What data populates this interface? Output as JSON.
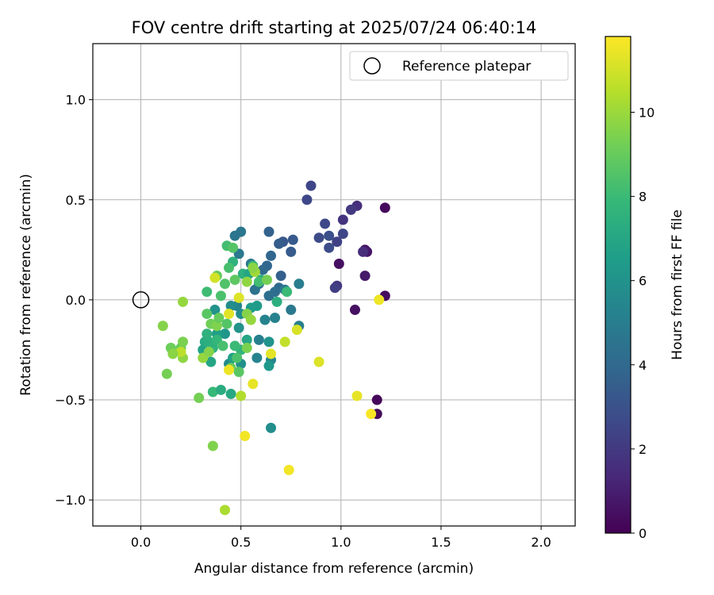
{
  "chart_data": {
    "type": "scatter",
    "title": "FOV centre drift starting at 2025/07/24 06:40:14",
    "xlabel": "Angular distance from reference (arcmin)",
    "ylabel": "Rotation from reference (arcmin)",
    "xlim": [
      -0.24,
      2.17
    ],
    "ylim": [
      -1.13,
      1.28
    ],
    "x_ticks": [
      0.0,
      0.5,
      1.0,
      1.5,
      2.0
    ],
    "x_tick_labels": [
      "0.0",
      "0.5",
      "1.0",
      "1.5",
      "2.0"
    ],
    "y_ticks": [
      -1.0,
      -0.5,
      0.0,
      0.5,
      1.0
    ],
    "y_tick_labels": [
      "−1.0",
      "−0.5",
      "0.0",
      "0.5",
      "1.0"
    ],
    "grid": true,
    "legend": {
      "placement": "top-right",
      "entries": [
        "Reference platepar"
      ]
    },
    "reference_point": {
      "x": 0.0,
      "y": 0.0,
      "label": "Reference platepar"
    },
    "colorbar": {
      "label": "Hours from first FF file",
      "min": 0,
      "max": 11.8,
      "ticks": [
        0,
        2,
        4,
        6,
        8,
        10
      ],
      "tick_labels": [
        "0",
        "2",
        "4",
        "6",
        "8",
        "10"
      ],
      "colormap": "viridis"
    },
    "points": [
      {
        "x": 1.22,
        "y": 0.46,
        "h": 0.3
      },
      {
        "x": 1.22,
        "y": 0.02,
        "h": 0.4
      },
      {
        "x": 1.18,
        "y": -0.5,
        "h": 0.2
      },
      {
        "x": 1.18,
        "y": -0.57,
        "h": 0.3
      },
      {
        "x": 1.12,
        "y": 0.25,
        "h": 0.6
      },
      {
        "x": 1.13,
        "y": 0.24,
        "h": 0.7
      },
      {
        "x": 1.12,
        "y": 0.12,
        "h": 0.8
      },
      {
        "x": 0.99,
        "y": 0.18,
        "h": 0.5
      },
      {
        "x": 1.07,
        "y": -0.05,
        "h": 0.5
      },
      {
        "x": 1.11,
        "y": 0.24,
        "h": 1.5
      },
      {
        "x": 1.08,
        "y": 0.47,
        "h": 1.6
      },
      {
        "x": 1.05,
        "y": 0.45,
        "h": 2.0
      },
      {
        "x": 1.01,
        "y": 0.4,
        "h": 1.8
      },
      {
        "x": 0.98,
        "y": 0.07,
        "h": 1.9
      },
      {
        "x": 0.97,
        "y": 0.06,
        "h": 2.2
      },
      {
        "x": 0.98,
        "y": 0.29,
        "h": 2.3
      },
      {
        "x": 1.01,
        "y": 0.33,
        "h": 2.5
      },
      {
        "x": 0.94,
        "y": 0.26,
        "h": 2.8
      },
      {
        "x": 0.92,
        "y": 0.38,
        "h": 2.6
      },
      {
        "x": 0.89,
        "y": 0.31,
        "h": 2.7
      },
      {
        "x": 0.85,
        "y": 0.57,
        "h": 2.5
      },
      {
        "x": 0.83,
        "y": 0.5,
        "h": 2.6
      },
      {
        "x": 0.94,
        "y": 0.32,
        "h": 2.9
      },
      {
        "x": 0.76,
        "y": 0.3,
        "h": 3.3
      },
      {
        "x": 0.75,
        "y": 0.24,
        "h": 3.4
      },
      {
        "x": 0.71,
        "y": 0.29,
        "h": 3.2
      },
      {
        "x": 0.69,
        "y": 0.28,
        "h": 3.5
      },
      {
        "x": 0.7,
        "y": 0.12,
        "h": 3.6
      },
      {
        "x": 0.64,
        "y": 0.34,
        "h": 3.7
      },
      {
        "x": 0.65,
        "y": 0.22,
        "h": 3.9
      },
      {
        "x": 0.63,
        "y": 0.17,
        "h": 3.9
      },
      {
        "x": 0.61,
        "y": 0.15,
        "h": 4.1
      },
      {
        "x": 0.69,
        "y": 0.06,
        "h": 4.0
      },
      {
        "x": 0.67,
        "y": 0.04,
        "h": 4.2
      },
      {
        "x": 0.64,
        "y": 0.02,
        "h": 4.3
      },
      {
        "x": 0.59,
        "y": 0.08,
        "h": 4.4
      },
      {
        "x": 0.57,
        "y": 0.05,
        "h": 4.5
      },
      {
        "x": 0.55,
        "y": 0.18,
        "h": 4.6
      },
      {
        "x": 0.5,
        "y": 0.34,
        "h": 4.7
      },
      {
        "x": 0.47,
        "y": 0.32,
        "h": 4.6
      },
      {
        "x": 0.49,
        "y": 0.23,
        "h": 4.8
      },
      {
        "x": 0.72,
        "y": 0.05,
        "h": 4.9
      },
      {
        "x": 0.75,
        "y": -0.05,
        "h": 4.8
      },
      {
        "x": 0.79,
        "y": 0.08,
        "h": 5.0
      },
      {
        "x": 0.79,
        "y": -0.13,
        "h": 5.1
      },
      {
        "x": 0.67,
        "y": -0.09,
        "h": 5.2
      },
      {
        "x": 0.62,
        "y": -0.1,
        "h": 5.3
      },
      {
        "x": 0.59,
        "y": -0.2,
        "h": 5.1
      },
      {
        "x": 0.58,
        "y": -0.29,
        "h": 5.3
      },
      {
        "x": 0.65,
        "y": -0.3,
        "h": 5.4
      },
      {
        "x": 0.65,
        "y": -0.64,
        "h": 5.8
      },
      {
        "x": 0.64,
        "y": -0.33,
        "h": 6.3
      },
      {
        "x": 0.64,
        "y": -0.21,
        "h": 6.1
      },
      {
        "x": 0.58,
        "y": -0.03,
        "h": 6.4
      },
      {
        "x": 0.55,
        "y": -0.04,
        "h": 6.5
      },
      {
        "x": 0.5,
        "y": -0.07,
        "h": 5.8
      },
      {
        "x": 0.49,
        "y": -0.14,
        "h": 6.0
      },
      {
        "x": 0.48,
        "y": -0.03,
        "h": 5.5
      },
      {
        "x": 0.45,
        "y": -0.03,
        "h": 5.7
      },
      {
        "x": 0.44,
        "y": -0.32,
        "h": 5.6
      },
      {
        "x": 0.5,
        "y": -0.32,
        "h": 5.9
      },
      {
        "x": 0.46,
        "y": -0.29,
        "h": 6.7
      },
      {
        "x": 0.42,
        "y": -0.17,
        "h": 6.2
      },
      {
        "x": 0.38,
        "y": -0.17,
        "h": 6.6
      },
      {
        "x": 0.37,
        "y": -0.05,
        "h": 6.0
      },
      {
        "x": 0.35,
        "y": -0.31,
        "h": 7.0
      },
      {
        "x": 0.31,
        "y": -0.25,
        "h": 6.8
      },
      {
        "x": 0.32,
        "y": -0.21,
        "h": 7.2
      },
      {
        "x": 0.34,
        "y": -0.21,
        "h": 7.4
      },
      {
        "x": 0.33,
        "y": -0.17,
        "h": 7.5
      },
      {
        "x": 0.36,
        "y": -0.24,
        "h": 7.6
      },
      {
        "x": 0.38,
        "y": -0.2,
        "h": 7.8
      },
      {
        "x": 0.36,
        "y": -0.46,
        "h": 7.9
      },
      {
        "x": 0.4,
        "y": -0.45,
        "h": 7.3
      },
      {
        "x": 0.45,
        "y": -0.47,
        "h": 7.1
      },
      {
        "x": 0.5,
        "y": -0.25,
        "h": 7.7
      },
      {
        "x": 0.53,
        "y": -0.2,
        "h": 7.0
      },
      {
        "x": 0.47,
        "y": -0.23,
        "h": 8.0
      },
      {
        "x": 0.51,
        "y": 0.13,
        "h": 7.5
      },
      {
        "x": 0.54,
        "y": 0.13,
        "h": 7.0
      },
      {
        "x": 0.56,
        "y": 0.17,
        "h": 7.8
      },
      {
        "x": 0.6,
        "y": 0.1,
        "h": 7.3
      },
      {
        "x": 0.68,
        "y": -0.01,
        "h": 7.4
      },
      {
        "x": 0.73,
        "y": 0.04,
        "h": 8.0
      },
      {
        "x": 0.46,
        "y": 0.19,
        "h": 7.6
      },
      {
        "x": 0.43,
        "y": 0.27,
        "h": 8.2
      },
      {
        "x": 0.46,
        "y": 0.26,
        "h": 8.6
      },
      {
        "x": 0.44,
        "y": 0.16,
        "h": 8.3
      },
      {
        "x": 0.47,
        "y": 0.1,
        "h": 8.8
      },
      {
        "x": 0.42,
        "y": 0.08,
        "h": 8.5
      },
      {
        "x": 0.4,
        "y": 0.02,
        "h": 8.4
      },
      {
        "x": 0.38,
        "y": 0.12,
        "h": 8.9
      },
      {
        "x": 0.33,
        "y": 0.04,
        "h": 8.1
      },
      {
        "x": 0.33,
        "y": -0.07,
        "h": 8.7
      },
      {
        "x": 0.35,
        "y": -0.12,
        "h": 9.2
      },
      {
        "x": 0.38,
        "y": -0.13,
        "h": 9.5
      },
      {
        "x": 0.39,
        "y": -0.09,
        "h": 9.0
      },
      {
        "x": 0.43,
        "y": -0.12,
        "h": 8.6
      },
      {
        "x": 0.41,
        "y": -0.23,
        "h": 8.3
      },
      {
        "x": 0.45,
        "y": -0.34,
        "h": 9.1
      },
      {
        "x": 0.48,
        "y": -0.29,
        "h": 8.4
      },
      {
        "x": 0.49,
        "y": -0.36,
        "h": 8.7
      },
      {
        "x": 0.53,
        "y": -0.24,
        "h": 9.4
      },
      {
        "x": 0.53,
        "y": -0.07,
        "h": 9.6
      },
      {
        "x": 0.55,
        "y": -0.1,
        "h": 9.9
      },
      {
        "x": 0.53,
        "y": 0.09,
        "h": 9.8
      },
      {
        "x": 0.57,
        "y": 0.14,
        "h": 10.1
      },
      {
        "x": 0.56,
        "y": 0.16,
        "h": 9.7
      },
      {
        "x": 0.59,
        "y": 0.09,
        "h": 8.2
      },
      {
        "x": 0.63,
        "y": 0.1,
        "h": 9.3
      },
      {
        "x": 0.5,
        "y": -0.48,
        "h": 10.4
      },
      {
        "x": 0.36,
        "y": -0.73,
        "h": 9.5
      },
      {
        "x": 0.42,
        "y": -1.05,
        "h": 10.3
      },
      {
        "x": 0.29,
        "y": -0.49,
        "h": 9.3
      },
      {
        "x": 0.31,
        "y": -0.29,
        "h": 9.9
      },
      {
        "x": 0.34,
        "y": -0.26,
        "h": 9.6
      },
      {
        "x": 0.2,
        "y": -0.24,
        "h": 9.0
      },
      {
        "x": 0.21,
        "y": -0.21,
        "h": 9.4
      },
      {
        "x": 0.21,
        "y": -0.29,
        "h": 9.8
      },
      {
        "x": 0.2,
        "y": -0.26,
        "h": 10.6
      },
      {
        "x": 0.15,
        "y": -0.24,
        "h": 9.1
      },
      {
        "x": 0.16,
        "y": -0.27,
        "h": 9.7
      },
      {
        "x": 0.13,
        "y": -0.37,
        "h": 9.3
      },
      {
        "x": 0.11,
        "y": -0.13,
        "h": 9.6
      },
      {
        "x": 0.21,
        "y": -0.01,
        "h": 9.9
      },
      {
        "x": 0.37,
        "y": 0.11,
        "h": 11.0
      },
      {
        "x": 0.49,
        "y": 0.01,
        "h": 11.2
      },
      {
        "x": 0.44,
        "y": -0.07,
        "h": 11.3
      },
      {
        "x": 0.44,
        "y": -0.35,
        "h": 11.5
      },
      {
        "x": 0.56,
        "y": -0.42,
        "h": 11.4
      },
      {
        "x": 0.52,
        "y": -0.68,
        "h": 11.6
      },
      {
        "x": 0.65,
        "y": -0.27,
        "h": 11.3
      },
      {
        "x": 0.72,
        "y": -0.21,
        "h": 10.7
      },
      {
        "x": 0.78,
        "y": -0.15,
        "h": 11.1
      },
      {
        "x": 0.74,
        "y": -0.85,
        "h": 11.6
      },
      {
        "x": 0.89,
        "y": -0.31,
        "h": 11.2
      },
      {
        "x": 1.08,
        "y": -0.48,
        "h": 11.4
      },
      {
        "x": 1.15,
        "y": -0.57,
        "h": 11.7
      },
      {
        "x": 1.19,
        "y": 0.0,
        "h": 11.5
      }
    ]
  }
}
